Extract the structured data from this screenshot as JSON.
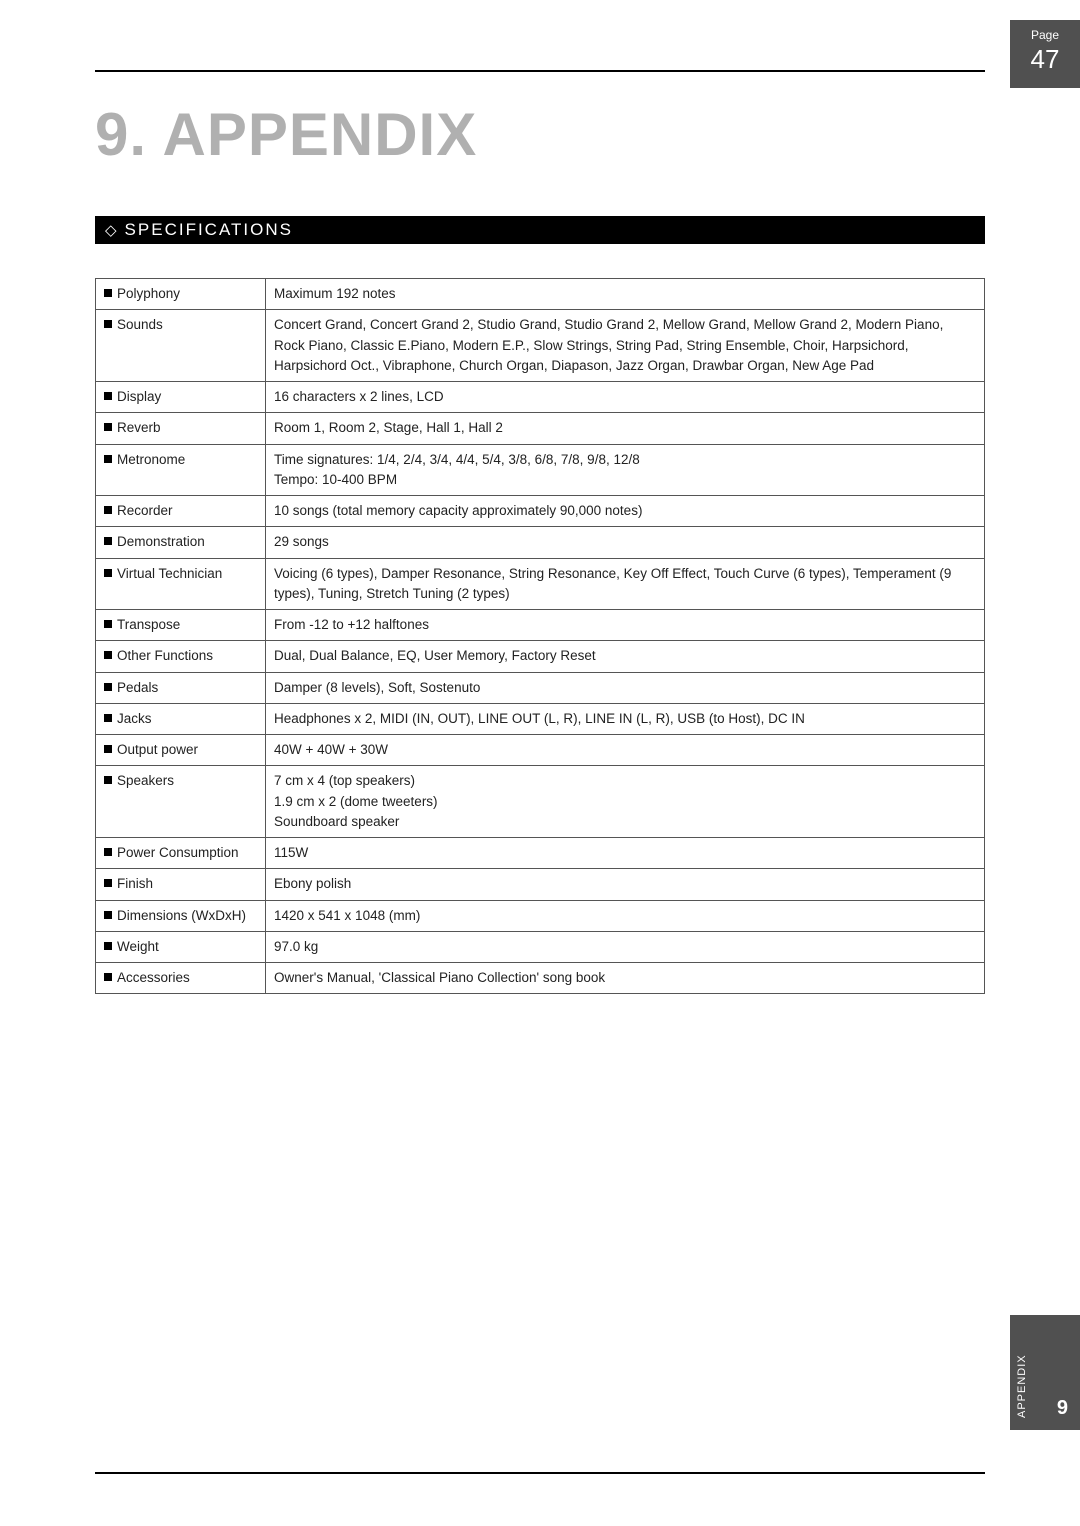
{
  "page": {
    "label": "Page",
    "number": "47"
  },
  "heading": "9. APPENDIX",
  "section_title": "SPECIFICATIONS",
  "side_tab": {
    "label": "APPENDIX",
    "chapter": "9"
  },
  "specs": [
    {
      "key": "Polyphony",
      "value": "Maximum 192 notes"
    },
    {
      "key": "Sounds",
      "value": "Concert Grand, Concert Grand 2, Studio Grand, Studio Grand 2, Mellow Grand, Mellow Grand 2, Modern Piano, Rock Piano, Classic E.Piano, Modern E.P., Slow Strings, String Pad, String Ensemble, Choir, Harpsichord, Harpsichord Oct., Vibraphone, Church Organ, Diapason, Jazz Organ, Drawbar Organ, New Age Pad"
    },
    {
      "key": "Display",
      "value": "16 characters x 2 lines, LCD"
    },
    {
      "key": "Reverb",
      "value": "Room 1, Room 2, Stage, Hall 1, Hall 2"
    },
    {
      "key": "Metronome",
      "value": "Time signatures: 1/4, 2/4, 3/4, 4/4, 5/4, 3/8, 6/8, 7/8, 9/8, 12/8\nTempo: 10-400 BPM"
    },
    {
      "key": "Recorder",
      "value": "10 songs (total memory capacity approximately 90,000 notes)"
    },
    {
      "key": "Demonstration",
      "value": "29 songs"
    },
    {
      "key": "Virtual Technician",
      "value": "Voicing (6 types), Damper Resonance, String Resonance, Key Off Effect, Touch Curve (6 types), Temperament (9 types), Tuning, Stretch Tuning (2 types)"
    },
    {
      "key": "Transpose",
      "value": "From -12 to +12 halftones"
    },
    {
      "key": "Other Functions",
      "value": "Dual, Dual Balance, EQ, User Memory, Factory Reset"
    },
    {
      "key": "Pedals",
      "value": "Damper (8 levels), Soft, Sostenuto"
    },
    {
      "key": "Jacks",
      "value": "Headphones x 2, MIDI (IN, OUT), LINE OUT (L, R), LINE IN (L, R), USB (to Host), DC IN"
    },
    {
      "key": "Output power",
      "value": "40W + 40W + 30W"
    },
    {
      "key": "Speakers",
      "value": "7 cm x 4 (top speakers)\n1.9 cm x 2 (dome tweeters)\nSoundboard speaker"
    },
    {
      "key": "Power Consumption",
      "value": "115W"
    },
    {
      "key": "Finish",
      "value": "Ebony polish"
    },
    {
      "key": "Dimensions (WxDxH)",
      "value": "1420 x 541 x 1048 (mm)"
    },
    {
      "key": "Weight",
      "value": "97.0 kg"
    },
    {
      "key": "Accessories",
      "value": "Owner's Manual, 'Classical Piano Collection' song book"
    }
  ]
}
